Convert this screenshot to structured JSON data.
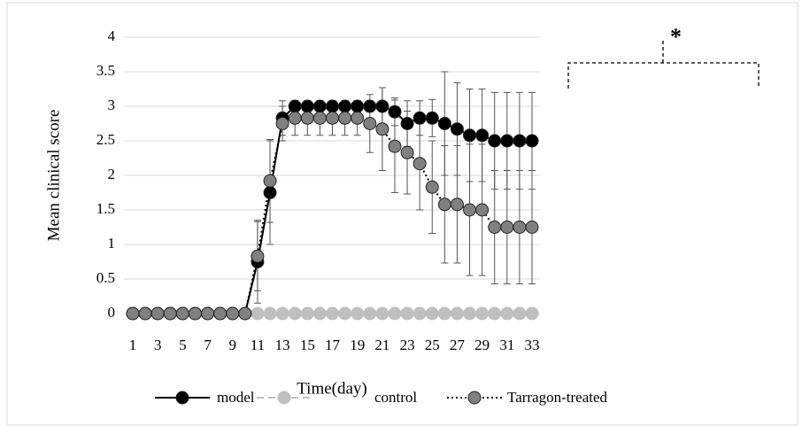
{
  "chart_data": {
    "type": "line",
    "x_label": "Time(day)",
    "y_label": "Mean clinical score",
    "annotation": "*",
    "categories": [
      "1",
      null,
      "3",
      null,
      "5",
      null,
      "7",
      null,
      "9",
      null,
      "11",
      null,
      "13",
      null,
      "15",
      null,
      "17",
      null,
      "19",
      null,
      "21",
      null,
      "23",
      null,
      "25",
      null,
      "27",
      null,
      "29",
      null,
      "31",
      null,
      "33"
    ],
    "ylim": [
      0,
      4
    ],
    "yticks": [
      0,
      0.5,
      1,
      1.5,
      2,
      2.5,
      3,
      3.5,
      4
    ],
    "grid": true,
    "legend": "bottom",
    "series": [
      {
        "name": "control",
        "color": "#bfbfbf",
        "dash": "dashed",
        "values": [
          0,
          0,
          0,
          0,
          0,
          0,
          0,
          0,
          0,
          0,
          0,
          0,
          0,
          0,
          0,
          0,
          0,
          0,
          0,
          0,
          0,
          0,
          0,
          0,
          0,
          0,
          0,
          0,
          0,
          0,
          0,
          0,
          0
        ]
      },
      {
        "name": "model",
        "color": "#000000",
        "dash": "solid",
        "values": [
          0,
          0,
          0,
          0,
          0,
          0,
          0,
          0,
          0,
          0,
          0.75,
          1.75,
          2.83,
          3,
          3,
          3,
          3,
          3,
          3,
          3,
          3,
          2.92,
          2.75,
          2.83,
          2.83,
          2.75,
          2.67,
          2.58,
          2.58,
          2.5,
          2.5,
          2.5,
          2.5
        ],
        "errors": [
          0,
          0,
          0,
          0,
          0,
          0,
          0,
          0,
          0,
          0,
          0.6,
          0.75,
          0.25,
          0.08,
          0.08,
          0.08,
          0.08,
          0.08,
          0.08,
          0.08,
          0.27,
          0.2,
          0.33,
          0.25,
          0.27,
          0.75,
          0.67,
          0.67,
          0.67,
          0.7,
          0.7,
          0.7,
          0.7
        ]
      },
      {
        "name": "Tarragon-treated",
        "color": "#808080",
        "dash": "dotted",
        "values": [
          0,
          0,
          0,
          0,
          0,
          0,
          0,
          0,
          0,
          0,
          0.83,
          1.92,
          2.75,
          2.83,
          2.83,
          2.83,
          2.83,
          2.83,
          2.83,
          2.75,
          2.67,
          2.42,
          2.33,
          2.17,
          1.83,
          1.58,
          1.58,
          1.5,
          1.5,
          1.25,
          1.25,
          1.25,
          1.25
        ],
        "errors": [
          0,
          0,
          0,
          0,
          0,
          0,
          0,
          0,
          0,
          0,
          0.5,
          0.6,
          0.25,
          0.25,
          0.25,
          0.25,
          0.25,
          0.25,
          0.25,
          0.42,
          0.6,
          0.67,
          0.6,
          0.67,
          0.67,
          0.85,
          0.85,
          0.95,
          0.95,
          0.82,
          0.82,
          0.82,
          0.82
        ]
      }
    ]
  }
}
